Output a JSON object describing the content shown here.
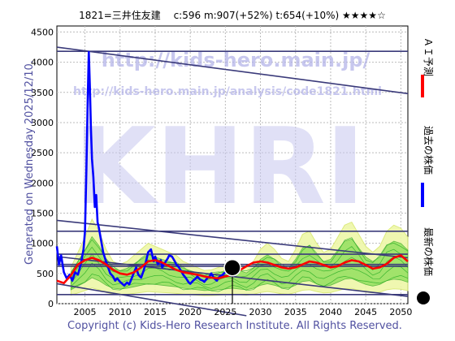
{
  "header": {
    "title": "1821=三井住友建　 c:596  m:907(+52%)  t:654(+10%)  ★★★★☆"
  },
  "side_left": "Generated on Wednesday 2025/12/10.",
  "legend": {
    "ai_label": "ＡＩ予測",
    "past_label": "過去の株価",
    "latest_label": "最新の株価",
    "ai_color": "#ff0000",
    "past_color": "#0000ff",
    "latest_color": "#000000"
  },
  "watermark": {
    "big": "KHRI",
    "url1": "http://kids-hero.main.jp/",
    "url2": "http://kids-hero.main.jp/analysis/code1821.html"
  },
  "footer": "Copyright (c) Kids-Hero Research Institute. All Rights Reserved.",
  "chart_data": {
    "type": "line",
    "xlim": [
      2001,
      2051
    ],
    "ylim": [
      0,
      4600
    ],
    "x_ticks": [
      2005,
      2010,
      2015,
      2020,
      2025,
      2030,
      2035,
      2040,
      2045,
      2050
    ],
    "y_ticks": [
      0,
      500,
      1000,
      1500,
      2000,
      2500,
      3000,
      3500,
      4000,
      4500
    ],
    "grid": true,
    "series": [
      {
        "role": "past",
        "color": "#0000ff",
        "points": [
          [
            2001,
            950
          ],
          [
            2001.3,
            650
          ],
          [
            2001.6,
            800
          ],
          [
            2002,
            520
          ],
          [
            2002.4,
            420
          ],
          [
            2002.8,
            480
          ],
          [
            2003.2,
            380
          ],
          [
            2003.6,
            520
          ],
          [
            2004,
            480
          ],
          [
            2004.4,
            650
          ],
          [
            2004.8,
            900
          ],
          [
            2005,
            1200
          ],
          [
            2005.2,
            2200
          ],
          [
            2005.4,
            3400
          ],
          [
            2005.55,
            4170
          ],
          [
            2005.7,
            3600
          ],
          [
            2005.85,
            2900
          ],
          [
            2006,
            2400
          ],
          [
            2006.2,
            2100
          ],
          [
            2006.4,
            1600
          ],
          [
            2006.6,
            1800
          ],
          [
            2006.8,
            1350
          ],
          [
            2007,
            1250
          ],
          [
            2007.3,
            1050
          ],
          [
            2007.6,
            850
          ],
          [
            2008,
            700
          ],
          [
            2008.3,
            600
          ],
          [
            2008.6,
            500
          ],
          [
            2009,
            450
          ],
          [
            2009.3,
            380
          ],
          [
            2009.6,
            420
          ],
          [
            2010,
            360
          ],
          [
            2010.3,
            330
          ],
          [
            2010.6,
            300
          ],
          [
            2011,
            350
          ],
          [
            2011.3,
            320
          ],
          [
            2011.7,
            430
          ],
          [
            2012,
            520
          ],
          [
            2012.3,
            600
          ],
          [
            2012.6,
            480
          ],
          [
            2013,
            430
          ],
          [
            2013.4,
            560
          ],
          [
            2013.8,
            750
          ],
          [
            2014,
            850
          ],
          [
            2014.4,
            900
          ],
          [
            2014.8,
            700
          ],
          [
            2015,
            780
          ],
          [
            2015.4,
            650
          ],
          [
            2015.8,
            720
          ],
          [
            2016,
            600
          ],
          [
            2016.4,
            680
          ],
          [
            2016.8,
            750
          ],
          [
            2017,
            800
          ],
          [
            2017.4,
            780
          ],
          [
            2017.8,
            700
          ],
          [
            2018,
            650
          ],
          [
            2018.4,
            600
          ],
          [
            2018.8,
            520
          ],
          [
            2019,
            480
          ],
          [
            2019.4,
            420
          ],
          [
            2019.8,
            350
          ],
          [
            2020,
            330
          ],
          [
            2020.4,
            380
          ],
          [
            2020.8,
            420
          ],
          [
            2021,
            450
          ],
          [
            2021.4,
            400
          ],
          [
            2021.8,
            380
          ],
          [
            2022,
            360
          ],
          [
            2022.4,
            420
          ],
          [
            2022.8,
            460
          ],
          [
            2023,
            500
          ],
          [
            2023.4,
            420
          ],
          [
            2023.8,
            380
          ],
          [
            2024,
            430
          ],
          [
            2024.4,
            460
          ],
          [
            2024.8,
            500
          ],
          [
            2025,
            520
          ]
        ]
      },
      {
        "role": "ai",
        "color": "#ff0000",
        "points": [
          [
            2001,
            380
          ],
          [
            2002,
            340
          ],
          [
            2003,
            470
          ],
          [
            2004,
            650
          ],
          [
            2005,
            720
          ],
          [
            2006,
            760
          ],
          [
            2007,
            720
          ],
          [
            2008,
            650
          ],
          [
            2009,
            560
          ],
          [
            2010,
            500
          ],
          [
            2011,
            480
          ],
          [
            2012,
            520
          ],
          [
            2013,
            600
          ],
          [
            2014,
            700
          ],
          [
            2015,
            720
          ],
          [
            2016,
            680
          ],
          [
            2017,
            620
          ],
          [
            2018,
            560
          ],
          [
            2019,
            520
          ],
          [
            2020,
            500
          ],
          [
            2021,
            480
          ],
          [
            2022,
            450
          ],
          [
            2023,
            430
          ],
          [
            2024,
            420
          ],
          [
            2025,
            450
          ],
          [
            2026,
            480
          ],
          [
            2027,
            550
          ],
          [
            2028,
            620
          ],
          [
            2029,
            680
          ],
          [
            2030,
            700
          ],
          [
            2031,
            680
          ],
          [
            2032,
            640
          ],
          [
            2033,
            600
          ],
          [
            2034,
            580
          ],
          [
            2035,
            600
          ],
          [
            2036,
            650
          ],
          [
            2037,
            700
          ],
          [
            2038,
            680
          ],
          [
            2039,
            640
          ],
          [
            2040,
            600
          ],
          [
            2041,
            620
          ],
          [
            2042,
            680
          ],
          [
            2043,
            720
          ],
          [
            2044,
            700
          ],
          [
            2045,
            640
          ],
          [
            2046,
            580
          ],
          [
            2047,
            600
          ],
          [
            2048,
            660
          ],
          [
            2049,
            760
          ],
          [
            2050,
            800
          ],
          [
            2051,
            700
          ]
        ]
      }
    ],
    "latest_point": {
      "x": 2026,
      "y": 596
    }
  }
}
